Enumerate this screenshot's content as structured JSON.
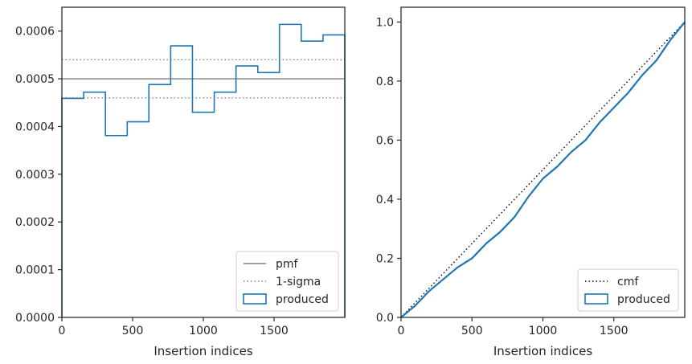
{
  "chart_data": [
    {
      "type": "line",
      "xlabel": "Insertion indices",
      "ylabel": "",
      "xlim": [
        0,
        2000
      ],
      "ylim": [
        0,
        0.00065
      ],
      "xticks": [
        0,
        500,
        1000,
        1500
      ],
      "xtick_labels": [
        "0",
        "500",
        "1000",
        "1500"
      ],
      "yticks": [
        0,
        0.0001,
        0.0002,
        0.0003,
        0.0004,
        0.0005,
        0.0006
      ],
      "ytick_labels": [
        "0.0000",
        "0.0001",
        "0.0002",
        "0.0003",
        "0.0004",
        "0.0005",
        "0.0006"
      ],
      "grid": false,
      "legend": "bottom-right",
      "series": [
        {
          "name": "pmf",
          "kind": "hline",
          "y": 0.0005,
          "color": "#808080",
          "style": "solid"
        },
        {
          "name": "1-sigma",
          "kind": "hlines",
          "y": [
            0.00054,
            0.00046
          ],
          "color": "#808080",
          "style": "dotted"
        },
        {
          "name": "produced",
          "kind": "step-histogram",
          "color": "#1f77b4",
          "bin_edges": [
            0,
            154,
            308,
            462,
            615,
            769,
            923,
            1077,
            1231,
            1385,
            1538,
            1692,
            1846,
            2000
          ],
          "values": [
            0.000459,
            0.000472,
            0.000381,
            0.00041,
            0.000488,
            0.000569,
            0.00043,
            0.000472,
            0.000527,
            0.000513,
            0.000614,
            0.000579,
            0.000592
          ]
        }
      ]
    },
    {
      "type": "line",
      "xlabel": "Insertion indices",
      "ylabel": "",
      "xlim": [
        0,
        2000
      ],
      "ylim": [
        0,
        1.05
      ],
      "xticks": [
        0,
        500,
        1000,
        1500
      ],
      "xtick_labels": [
        "0",
        "500",
        "1000",
        "1500"
      ],
      "yticks": [
        0,
        0.2,
        0.4,
        0.6,
        0.8,
        1.0
      ],
      "ytick_labels": [
        "0.0",
        "0.2",
        "0.4",
        "0.6",
        "0.8",
        "1.0"
      ],
      "grid": false,
      "legend": "bottom-right",
      "series": [
        {
          "name": "cmf",
          "kind": "line",
          "x": [
            0,
            2000
          ],
          "y": [
            0,
            1.0
          ],
          "color": "#000000",
          "style": "dotted"
        },
        {
          "name": "produced",
          "kind": "line",
          "color": "#1f77b4",
          "x": [
            0,
            50,
            100,
            200,
            300,
            400,
            500,
            600,
            700,
            800,
            900,
            1000,
            1100,
            1200,
            1300,
            1400,
            1500,
            1600,
            1700,
            1800,
            1900,
            1950,
            2000
          ],
          "y": [
            0,
            0.02,
            0.04,
            0.09,
            0.13,
            0.17,
            0.2,
            0.25,
            0.29,
            0.34,
            0.41,
            0.47,
            0.51,
            0.56,
            0.6,
            0.66,
            0.71,
            0.76,
            0.82,
            0.87,
            0.94,
            0.97,
            1.0
          ]
        }
      ]
    }
  ]
}
